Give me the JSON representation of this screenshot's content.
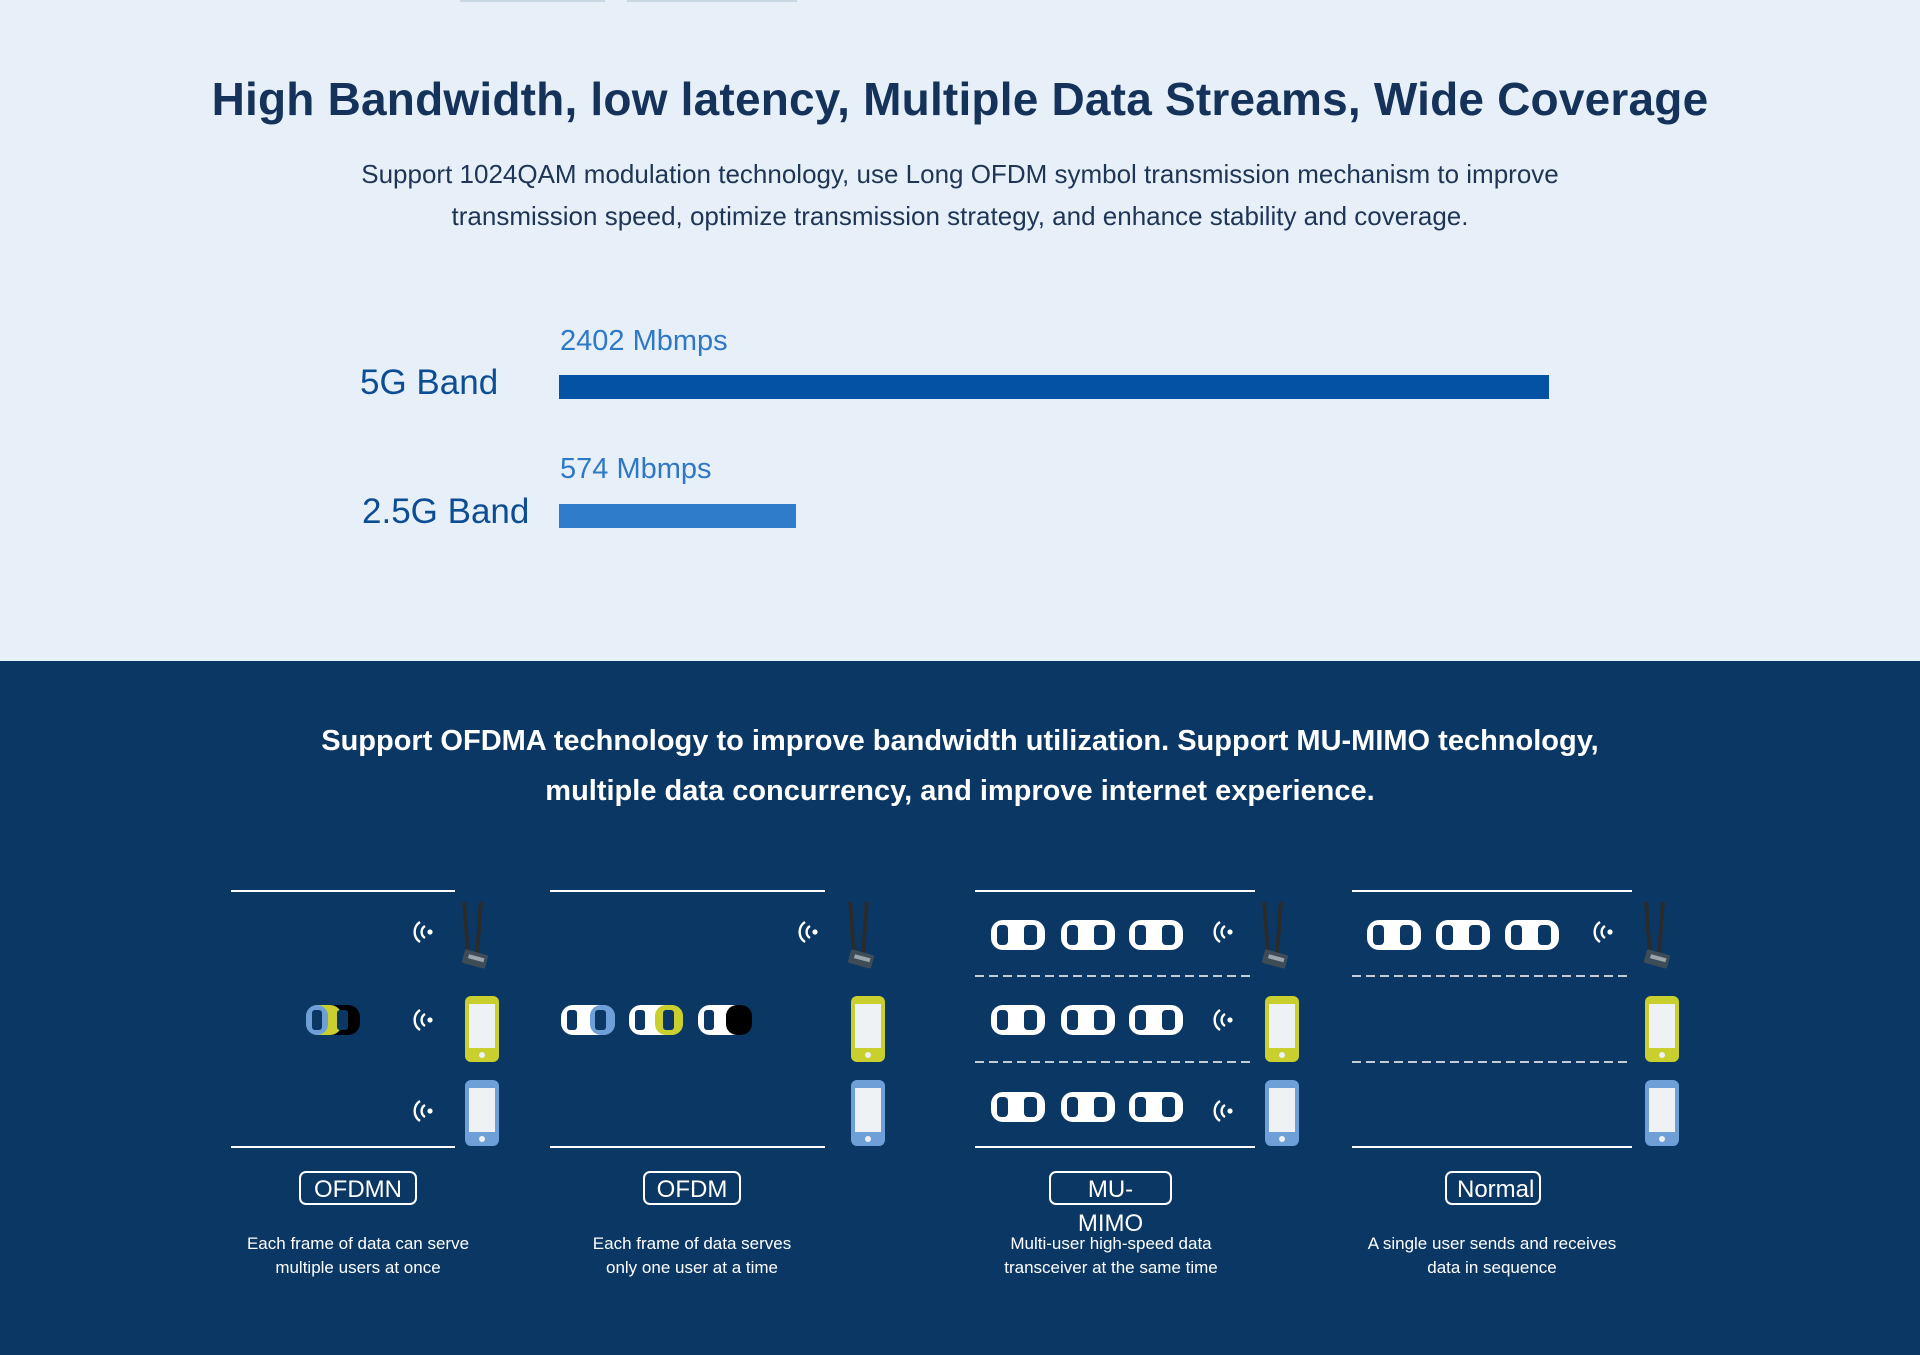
{
  "header": {
    "title": "High Bandwidth, low latency, Multiple Data Streams, Wide Coverage",
    "subtitle_line1": "Support 1024QAM modulation technology, use Long OFDM symbol transmission mechanism to improve",
    "subtitle_line2": "transmission speed, optimize transmission strategy, and enhance stability and coverage."
  },
  "chart_data": {
    "type": "bar",
    "orientation": "horizontal",
    "categories": [
      "5G Band",
      "2.5G Band"
    ],
    "values": [
      2402,
      574
    ],
    "value_labels": [
      "2402 Mbmps",
      "574 Mbmps"
    ],
    "unit": "Mbmps",
    "colors": [
      "#0352a3",
      "#2f7ccb"
    ]
  },
  "features": {
    "title_line1": "Support OFDMA technology to improve bandwidth utilization. Support MU-MIMO technology,",
    "title_line2": "multiple data concurrency, and improve internet experience.",
    "panels": [
      {
        "label": "OFDMN",
        "caption_line1": "Each frame of data can serve",
        "caption_line2": "multiple users at once"
      },
      {
        "label": "OFDM",
        "caption_line1": "Each frame of data serves",
        "caption_line2": "only one user at a time"
      },
      {
        "label": "MU-MIMO",
        "caption_line1": "Multi-user high-speed data",
        "caption_line2": "transceiver at the same time"
      },
      {
        "label": "Normal",
        "caption_line1": "A single user sends and receives",
        "caption_line2": "data in sequence"
      }
    ]
  },
  "colors": {
    "light_bg": "#e7f0f8",
    "dark_bg": "#0a3764",
    "accent_yellow": "#c9cf2c",
    "phone_blue": "#6e9fd6"
  },
  "icons": [
    "wifi-signal-icon",
    "antenna-card-icon",
    "phone-icon",
    "car-icon"
  ]
}
